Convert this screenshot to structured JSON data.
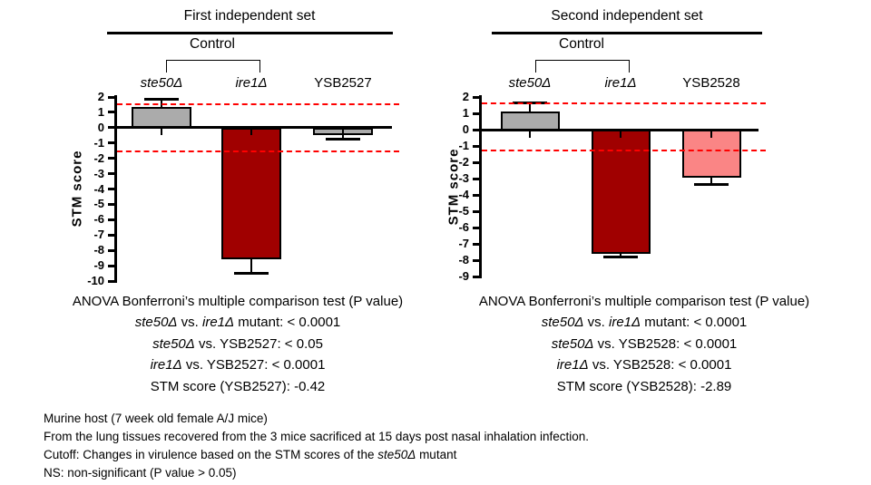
{
  "chart_data": [
    {
      "type": "bar",
      "title": "First independent set",
      "group_label": "Control",
      "ylabel": "STM score",
      "ylim": [
        -10,
        2
      ],
      "ytick_step": 1,
      "grid": false,
      "cutoff_lines": [
        1.5,
        -1.55
      ],
      "cutoff_color": "#FF0000",
      "categories": [
        "ste50Δ",
        "ire1Δ",
        "YSB2527"
      ],
      "bars": [
        {
          "label": "ste50Δ",
          "italic": true,
          "value": 1.35,
          "error_tip": 1.85,
          "color": "#ABABAB"
        },
        {
          "label": "ire1Δ",
          "italic": true,
          "value": -8.5,
          "error_tip": -9.5,
          "color": "#A00000"
        },
        {
          "label": "YSB2527",
          "italic": false,
          "value": -0.42,
          "error_tip": -0.72,
          "color": "#ABABAB"
        }
      ],
      "anova_title": "ANOVA Bonferroni’s multiple comparison test (P value)",
      "anova_lines": [
        [
          {
            "t": "ste50Δ",
            "i": true
          },
          {
            "t": " vs. "
          },
          {
            "t": "ire1Δ",
            "i": true
          },
          {
            "t": " mutant: < 0.0001"
          }
        ],
        [
          {
            "t": "ste50Δ",
            "i": true
          },
          {
            "t": " vs. YSB2527: < 0.05"
          }
        ],
        [
          {
            "t": "ire1Δ",
            "i": true
          },
          {
            "t": " vs. YSB2527: < 0.0001"
          }
        ],
        [
          {
            "t": "STM score (YSB2527): -0.42"
          }
        ]
      ]
    },
    {
      "type": "bar",
      "title": "Second independent set",
      "group_label": "Control",
      "ylabel": "STM score",
      "ylim": [
        -9,
        2
      ],
      "ytick_step": 1,
      "grid": false,
      "cutoff_lines": [
        1.6,
        -1.3
      ],
      "cutoff_color": "#FF0000",
      "categories": [
        "ste50Δ",
        "ire1Δ",
        "YSB2528"
      ],
      "bars": [
        {
          "label": "ste50Δ",
          "italic": true,
          "value": 1.1,
          "error_tip": 1.65,
          "color": "#ABABAB"
        },
        {
          "label": "ire1Δ",
          "italic": true,
          "value": -7.55,
          "error_tip": -7.78,
          "color": "#A00000"
        },
        {
          "label": "YSB2528",
          "italic": false,
          "value": -2.89,
          "error_tip": -3.35,
          "color": "#FA8585"
        }
      ],
      "anova_title": "ANOVA Bonferroni’s multiple comparison test (P value)",
      "anova_lines": [
        [
          {
            "t": "ste50Δ",
            "i": true
          },
          {
            "t": " vs. "
          },
          {
            "t": "ire1Δ",
            "i": true
          },
          {
            "t": " mutant: < 0.0001"
          }
        ],
        [
          {
            "t": "ste50Δ",
            "i": true
          },
          {
            "t": " vs. YSB2528: < 0.0001"
          }
        ],
        [
          {
            "t": "ire1Δ",
            "i": true
          },
          {
            "t": " vs. YSB2528: < 0.0001"
          }
        ],
        [
          {
            "t": "STM score (YSB2528): -2.89"
          }
        ]
      ]
    }
  ],
  "footer": {
    "lines": [
      [
        {
          "t": "Murine host (7 week old female A/J mice)"
        }
      ],
      [
        {
          "t": "From the lung tissues recovered from the 3 mice sacrificed at 15 days post nasal inhalation infection."
        }
      ],
      [
        {
          "t": "Cutoff: Changes in virulence based on the STM scores of the "
        },
        {
          "t": "ste50Δ",
          "i": true
        },
        {
          "t": " mutant"
        }
      ],
      [
        {
          "t": "NS: non-significant (P value > 0.05)"
        }
      ]
    ]
  },
  "colors": {
    "axis": "#000000",
    "bar_border": "#000000",
    "gray_bar": "#ABABAB",
    "dark_red_bar": "#A00000",
    "pink_bar": "#FA8585",
    "cutoff_dashed": "#FF0000"
  }
}
